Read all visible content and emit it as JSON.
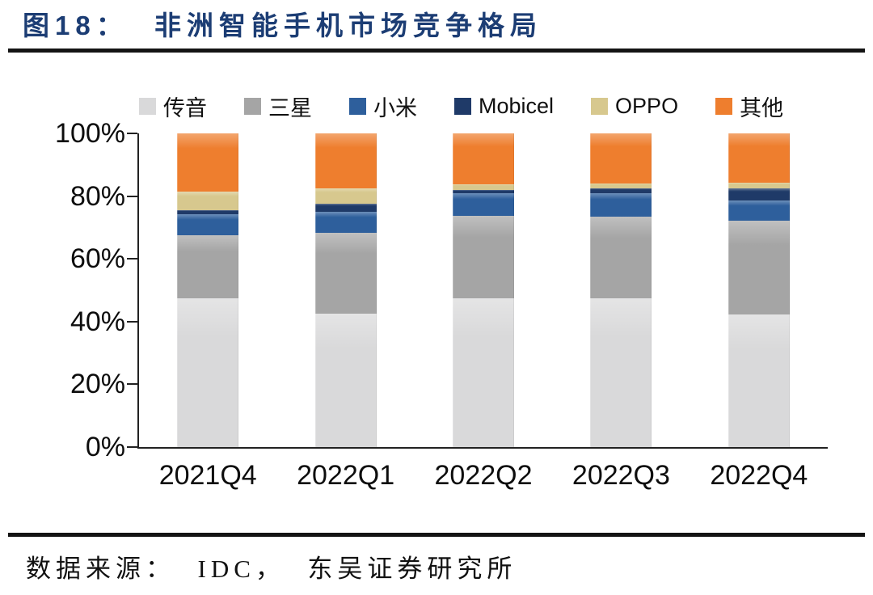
{
  "figure": {
    "label_and_title": "图18：  非洲智能手机市场竞争格局",
    "source": "数据来源：  IDC，  东吴证券研究所"
  },
  "colors": {
    "title": "#1c3d74",
    "divider": "#141414",
    "axis": "#222222"
  },
  "chart_data": {
    "type": "bar",
    "stacked": true,
    "title": "非洲智能手机市场竞争格局",
    "xlabel": "",
    "ylabel": "",
    "ylim": [
      0,
      100
    ],
    "yticks": [
      "0%",
      "20%",
      "40%",
      "60%",
      "80%",
      "100%"
    ],
    "grid": false,
    "legend_position": "top",
    "categories": [
      "2021Q4",
      "2022Q1",
      "2022Q2",
      "2022Q3",
      "2022Q4"
    ],
    "series": [
      {
        "key": "chuanyin",
        "name": "传音",
        "color": "#d9d9da",
        "values": [
          47.5,
          42.5,
          47.4,
          47.5,
          42.3
        ]
      },
      {
        "key": "samsung",
        "name": "三星",
        "color": "#a5a5a5",
        "values": [
          20.0,
          25.8,
          26.3,
          26.0,
          29.9
        ]
      },
      {
        "key": "xiaomi",
        "name": "小米",
        "color": "#2e5f9c",
        "values": [
          6.7,
          6.7,
          7.2,
          7.5,
          6.4
        ]
      },
      {
        "key": "mobicel",
        "name": "Mobicel",
        "color": "#1f3a68",
        "values": [
          1.3,
          2.6,
          1.0,
          1.5,
          3.9
        ]
      },
      {
        "key": "oppo",
        "name": "OPPO",
        "color": "#d7c88e",
        "values": [
          6.0,
          4.9,
          1.8,
          1.5,
          1.8
        ]
      },
      {
        "key": "others",
        "name": "其他",
        "color": "#ee7e2e",
        "values": [
          18.5,
          17.5,
          16.3,
          16.0,
          15.7
        ]
      }
    ]
  }
}
